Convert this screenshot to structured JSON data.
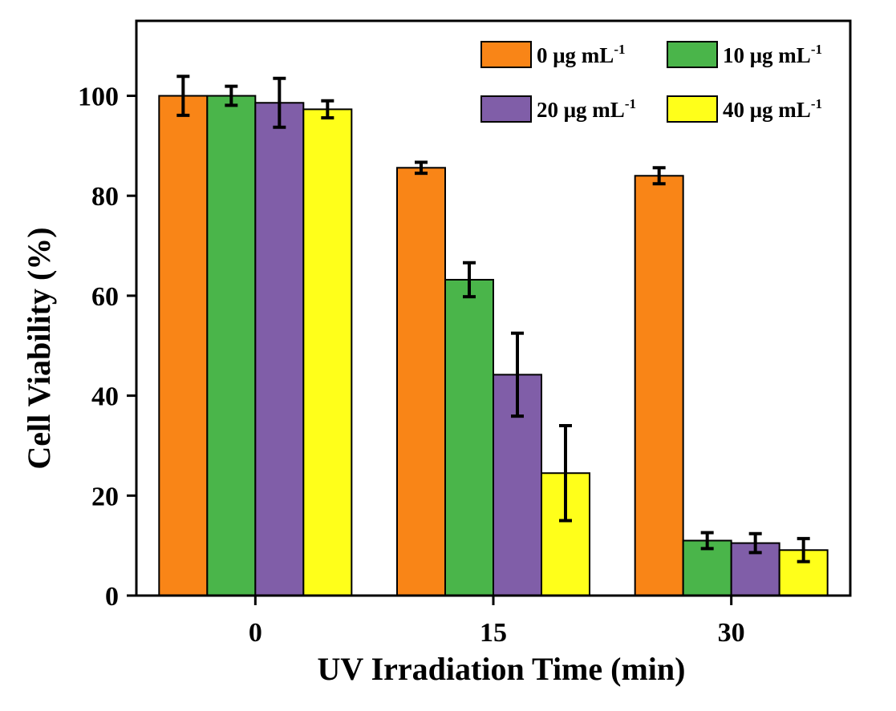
{
  "chart_data": {
    "type": "bar",
    "title": "",
    "xlabel": "UV Irradiation Time (min)",
    "ylabel": "Cell Viability (%)",
    "categories": [
      "0",
      "15",
      "30"
    ],
    "ylim": [
      0,
      115
    ],
    "yticks": [
      0,
      20,
      40,
      60,
      80,
      100
    ],
    "ytick_labels": [
      "0",
      "20",
      "40",
      "60",
      "80",
      "100"
    ],
    "grid": false,
    "legend_position": "top-right",
    "legend_columns": 2,
    "series": [
      {
        "name": "0 μg mL",
        "sup": "-1",
        "color": "#F98517",
        "values": [
          100.0,
          85.6,
          84.0
        ],
        "errors": [
          3.9,
          1.1,
          1.6
        ]
      },
      {
        "name": "10 μg mL",
        "sup": "-1",
        "color": "#4AB54A",
        "values": [
          100.0,
          63.2,
          11.0
        ],
        "errors": [
          1.9,
          3.4,
          1.6
        ]
      },
      {
        "name": "20 μg mL",
        "sup": "-1",
        "color": "#805EA8",
        "values": [
          98.6,
          44.2,
          10.5
        ],
        "errors": [
          4.9,
          8.3,
          1.9
        ]
      },
      {
        "name": "40 μg mL",
        "sup": "-1",
        "color": "#FFFF1A",
        "values": [
          97.3,
          24.5,
          9.1
        ],
        "errors": [
          1.7,
          9.5,
          2.3
        ]
      }
    ]
  }
}
